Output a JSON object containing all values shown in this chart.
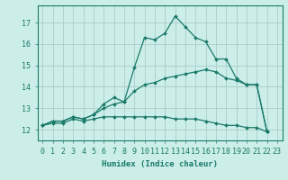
{
  "xlabel": "Humidex (Indice chaleur)",
  "background_color": "#cceee8",
  "grid_color": "#aacccc",
  "line_color": "#1a7a6a",
  "xlim": [
    -0.5,
    23.5
  ],
  "ylim": [
    11.5,
    17.8
  ],
  "xticks": [
    0,
    1,
    2,
    3,
    4,
    5,
    6,
    7,
    8,
    9,
    10,
    11,
    12,
    13,
    14,
    15,
    16,
    17,
    18,
    19,
    20,
    21,
    22,
    23
  ],
  "yticks": [
    12,
    13,
    14,
    15,
    16,
    17
  ],
  "line1_x": [
    0,
    1,
    2,
    3,
    4,
    5,
    6,
    7,
    8,
    9,
    10,
    11,
    12,
    13,
    14,
    15,
    16,
    17,
    18,
    19,
    20,
    21,
    22
  ],
  "line1_y": [
    12.2,
    12.4,
    12.4,
    12.6,
    12.5,
    12.7,
    13.2,
    13.5,
    13.3,
    14.9,
    16.3,
    16.2,
    16.5,
    17.3,
    16.8,
    16.3,
    16.1,
    15.3,
    15.3,
    14.4,
    14.1,
    14.1,
    11.9
  ],
  "line2_x": [
    0,
    1,
    2,
    3,
    4,
    5,
    6,
    7,
    8,
    9,
    10,
    11,
    12,
    13,
    14,
    15,
    16,
    17,
    18,
    19,
    20,
    21,
    22
  ],
  "line2_y": [
    12.2,
    12.4,
    12.4,
    12.6,
    12.5,
    12.7,
    13.0,
    13.2,
    13.3,
    13.8,
    14.1,
    14.2,
    14.4,
    14.5,
    14.6,
    14.7,
    14.8,
    14.7,
    14.4,
    14.3,
    14.1,
    14.1,
    11.9
  ],
  "line3_x": [
    0,
    1,
    2,
    3,
    4,
    5,
    6,
    7,
    8,
    9,
    10,
    11,
    12,
    13,
    14,
    15,
    16,
    17,
    18,
    19,
    20,
    21,
    22
  ],
  "line3_y": [
    12.2,
    12.3,
    12.3,
    12.5,
    12.4,
    12.5,
    12.6,
    12.6,
    12.6,
    12.6,
    12.6,
    12.6,
    12.6,
    12.5,
    12.5,
    12.5,
    12.4,
    12.3,
    12.2,
    12.2,
    12.1,
    12.1,
    11.9
  ],
  "markersize": 2.0,
  "linewidth": 0.9,
  "tick_fontsize": 6.0,
  "xlabel_fontsize": 6.5
}
